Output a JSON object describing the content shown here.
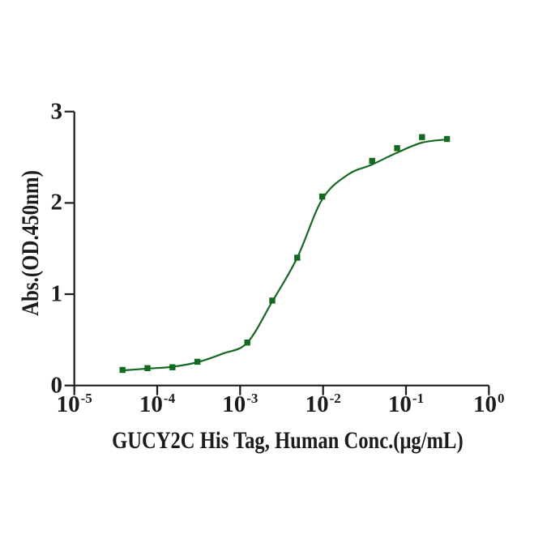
{
  "figure": {
    "background": "#ffffff"
  },
  "chart_data": {
    "type": "scatter",
    "title": "",
    "xlabel": "GUCY2C His Tag, Human Conc.(μg/mL)",
    "ylabel": "Abs.(OD.450nm)",
    "x_scale": "log10",
    "xlim": [
      1e-05,
      1
    ],
    "ylim": [
      0,
      3
    ],
    "grid": false,
    "legend": "none",
    "axis_color": "#1c1c1c",
    "x_ticks": [
      {
        "base": "10",
        "exp": "-5",
        "value": 1e-05
      },
      {
        "base": "10",
        "exp": "-4",
        "value": 0.0001
      },
      {
        "base": "10",
        "exp": "-3",
        "value": 0.001
      },
      {
        "base": "10",
        "exp": "-2",
        "value": 0.01
      },
      {
        "base": "10",
        "exp": "-1",
        "value": 0.1
      },
      {
        "base": "10",
        "exp": "0",
        "value": 1
      }
    ],
    "y_ticks": [
      {
        "label": "0",
        "value": 0
      },
      {
        "label": "1",
        "value": 1
      },
      {
        "label": "2",
        "value": 2
      },
      {
        "label": "3",
        "value": 3
      }
    ],
    "series": [
      {
        "marker": "square",
        "marker_size": 7.4,
        "color": "#156920",
        "points": [
          {
            "x": 3.815e-05,
            "y": 0.17
          },
          {
            "x": 7.63e-05,
            "y": 0.19
          },
          {
            "x": 0.0001526,
            "y": 0.2
          },
          {
            "x": 0.0003052,
            "y": 0.26
          },
          {
            "x": 0.001221,
            "y": 0.47
          },
          {
            "x": 0.002441,
            "y": 0.93
          },
          {
            "x": 0.004883,
            "y": 1.4
          },
          {
            "x": 0.009766,
            "y": 2.07
          },
          {
            "x": 0.03906,
            "y": 2.46
          },
          {
            "x": 0.07813,
            "y": 2.6
          },
          {
            "x": 0.1563,
            "y": 2.72
          },
          {
            "x": 0.3125,
            "y": 2.7
          }
        ]
      }
    ],
    "fit_curve": {
      "type": "sigmoidal-dose-response",
      "color": "#156920",
      "samples": [
        [
          3.815e-05,
          0.165
        ],
        [
          7.63e-05,
          0.185
        ],
        [
          0.0001526,
          0.205
        ],
        [
          0.0003052,
          0.255
        ],
        [
          0.00062,
          0.35
        ],
        [
          0.001221,
          0.47
        ],
        [
          0.002441,
          0.92
        ],
        [
          0.004883,
          1.4
        ],
        [
          0.009766,
          2.04
        ],
        [
          0.02,
          2.31
        ],
        [
          0.03906,
          2.42
        ],
        [
          0.07813,
          2.55
        ],
        [
          0.1563,
          2.66
        ],
        [
          0.3125,
          2.695
        ]
      ]
    }
  }
}
